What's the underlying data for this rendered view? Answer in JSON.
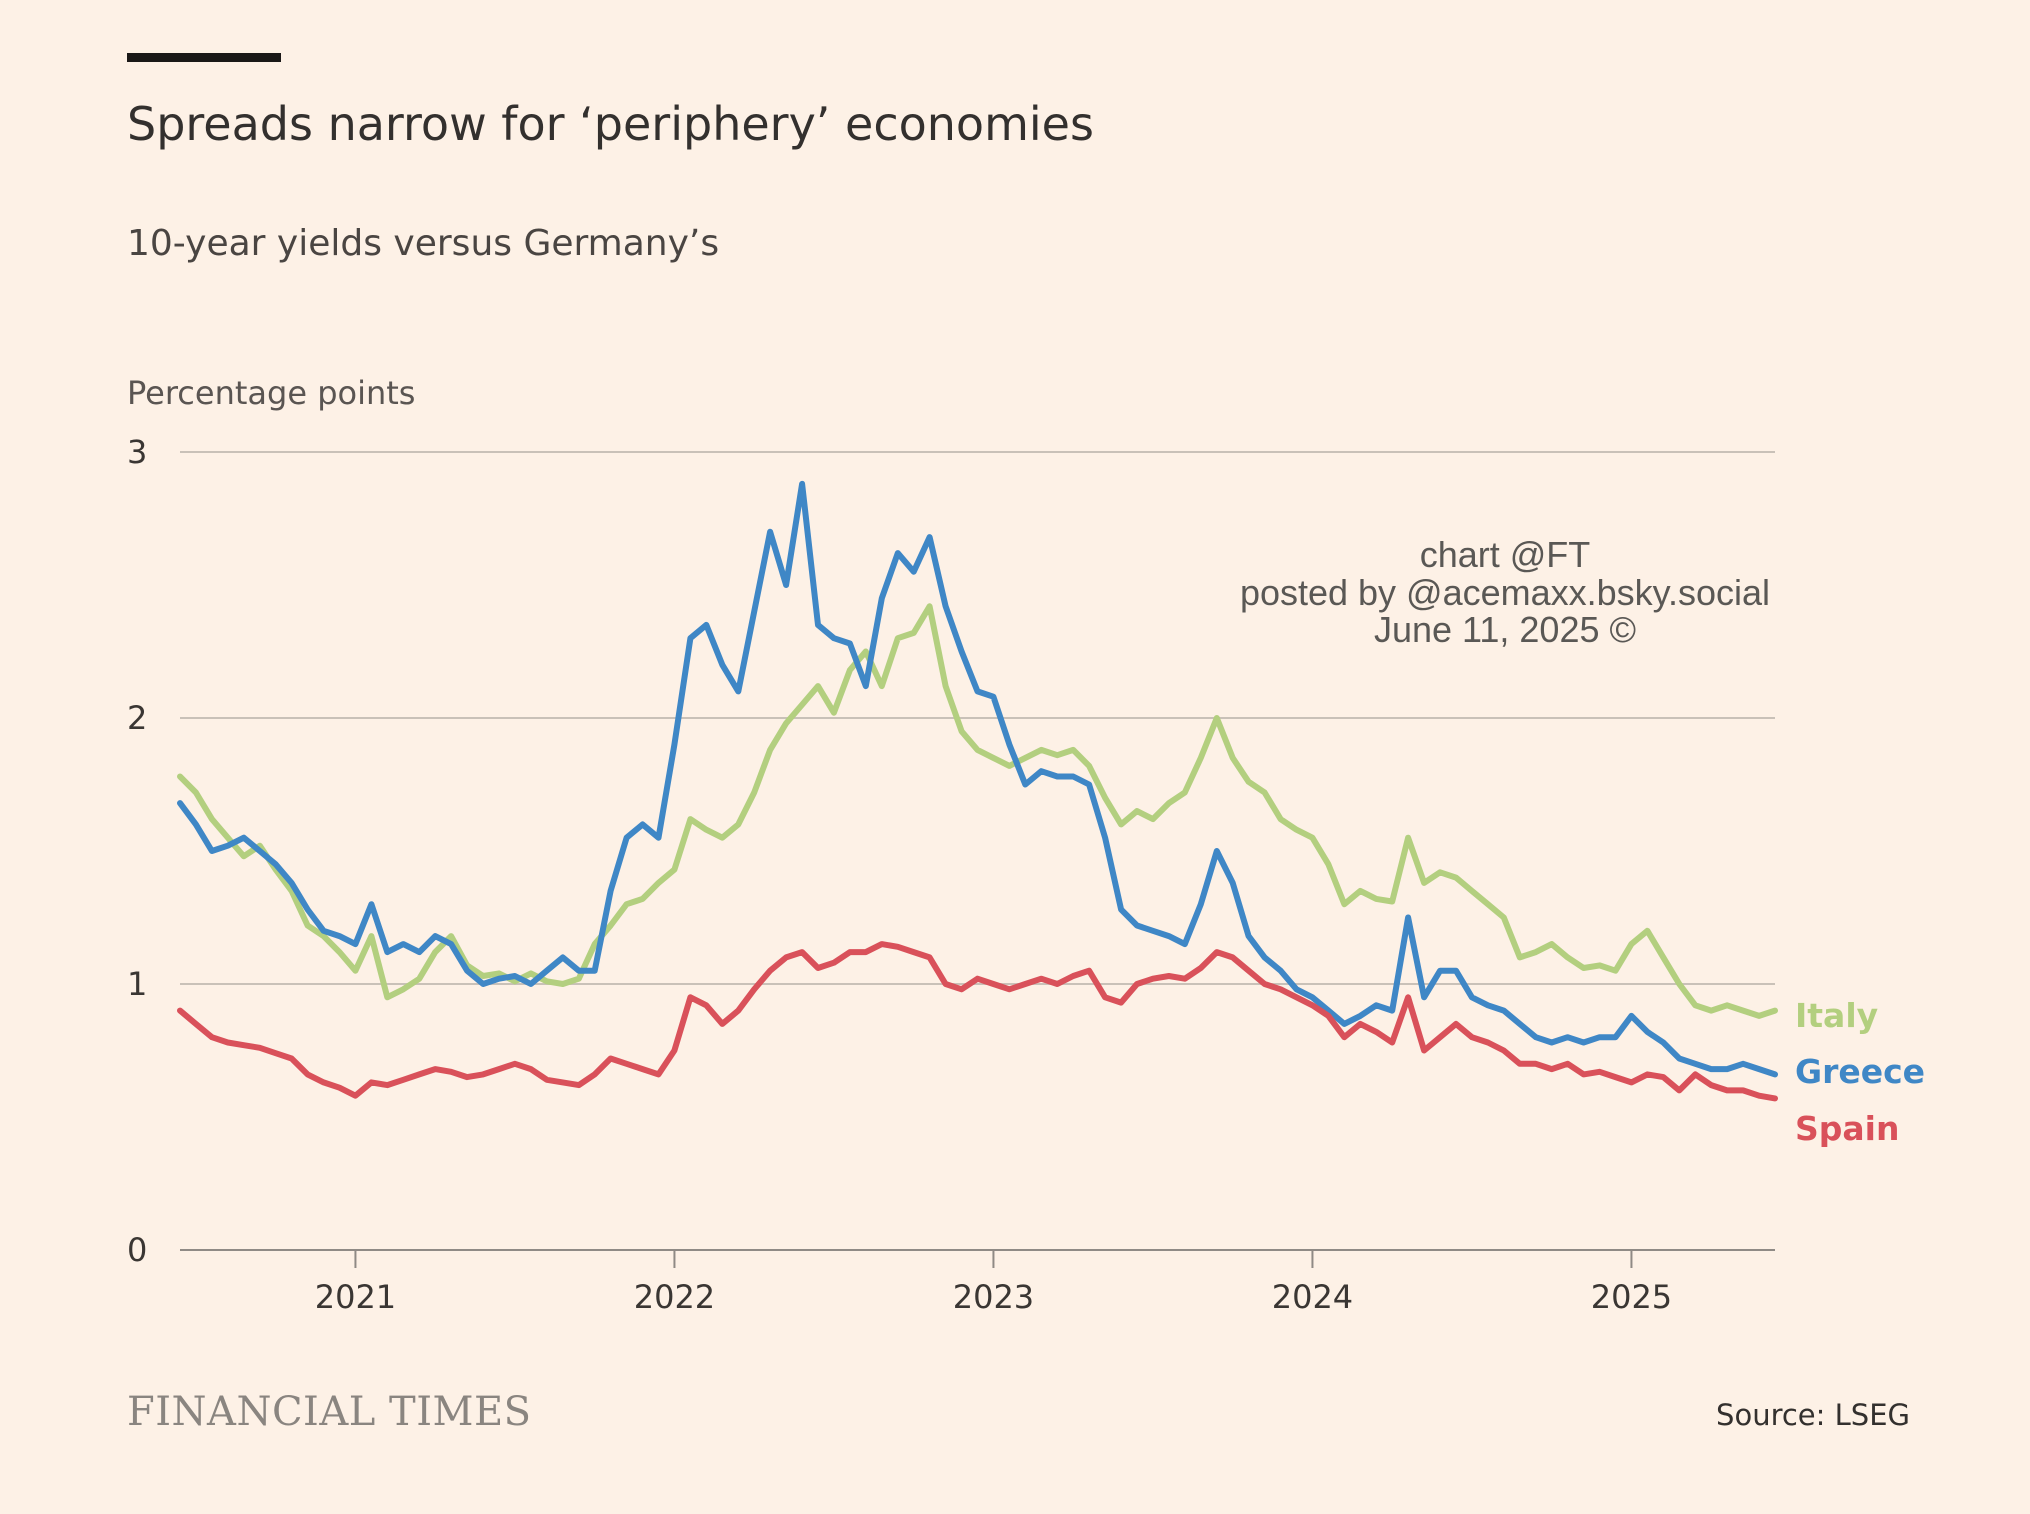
{
  "header": {
    "title": "Spreads narrow for ‘periphery’ economies",
    "subtitle": "10-year yields versus Germany’s",
    "unit_label": "Percentage points"
  },
  "watermark": {
    "line1": "chart @FT",
    "line2": "posted by @acemaxx.bsky.social",
    "line3": "June 11, 2025 ©"
  },
  "footer": {
    "brand": "FINANCIAL TIMES",
    "source": "Source: LSEG"
  },
  "colors": {
    "background": "#fdf1e6",
    "italy": "#b3cf7f",
    "greece": "#3f87c6",
    "spain": "#d9515a",
    "accent_bar": "#1a1817"
  },
  "chart_data": {
    "type": "line",
    "title": "Spreads narrow for ‘periphery’ economies",
    "subtitle": "10-year yields versus Germany’s",
    "ylabel": "Percentage points",
    "xlabel": "",
    "xlim": [
      2020.45,
      2025.45
    ],
    "ylim": [
      0,
      3
    ],
    "yticks": [
      0,
      1,
      2,
      3
    ],
    "xticks": [
      2021,
      2022,
      2023,
      2024,
      2025
    ],
    "grid": true,
    "legend": "right, end of lines",
    "series": [
      {
        "name": "Italy",
        "color": "#b3cf7f",
        "x": [
          2020.45,
          2020.5,
          2020.55,
          2020.6,
          2020.65,
          2020.7,
          2020.75,
          2020.8,
          2020.85,
          2020.9,
          2020.95,
          2021.0,
          2021.05,
          2021.1,
          2021.15,
          2021.2,
          2021.25,
          2021.3,
          2021.35,
          2021.4,
          2021.45,
          2021.5,
          2021.55,
          2021.6,
          2021.65,
          2021.7,
          2021.75,
          2021.8,
          2021.85,
          2021.9,
          2021.95,
          2022.0,
          2022.05,
          2022.1,
          2022.15,
          2022.2,
          2022.25,
          2022.3,
          2022.35,
          2022.4,
          2022.45,
          2022.5,
          2022.55,
          2022.6,
          2022.65,
          2022.7,
          2022.75,
          2022.8,
          2022.85,
          2022.9,
          2022.95,
          2023.0,
          2023.05,
          2023.1,
          2023.15,
          2023.2,
          2023.25,
          2023.3,
          2023.35,
          2023.4,
          2023.45,
          2023.5,
          2023.55,
          2023.6,
          2023.65,
          2023.7,
          2023.75,
          2023.8,
          2023.85,
          2023.9,
          2023.95,
          2024.0,
          2024.05,
          2024.1,
          2024.15,
          2024.2,
          2024.25,
          2024.3,
          2024.35,
          2024.4,
          2024.45,
          2024.5,
          2024.55,
          2024.6,
          2024.65,
          2024.7,
          2024.75,
          2024.8,
          2024.85,
          2024.9,
          2024.95,
          2025.0,
          2025.05,
          2025.1,
          2025.15,
          2025.2,
          2025.25,
          2025.3,
          2025.35,
          2025.4,
          2025.45
        ],
        "values": [
          1.78,
          1.72,
          1.62,
          1.55,
          1.48,
          1.52,
          1.43,
          1.35,
          1.22,
          1.18,
          1.12,
          1.05,
          1.18,
          0.95,
          0.98,
          1.02,
          1.12,
          1.18,
          1.07,
          1.03,
          1.04,
          1.01,
          1.04,
          1.01,
          1.0,
          1.02,
          1.15,
          1.22,
          1.3,
          1.32,
          1.38,
          1.43,
          1.62,
          1.58,
          1.55,
          1.6,
          1.72,
          1.88,
          1.98,
          2.05,
          2.12,
          2.02,
          2.18,
          2.25,
          2.12,
          2.3,
          2.32,
          2.42,
          2.12,
          1.95,
          1.88,
          1.85,
          1.82,
          1.85,
          1.88,
          1.86,
          1.88,
          1.82,
          1.7,
          1.6,
          1.65,
          1.62,
          1.68,
          1.72,
          1.85,
          2.0,
          1.85,
          1.76,
          1.72,
          1.62,
          1.58,
          1.55,
          1.45,
          1.3,
          1.35,
          1.32,
          1.31,
          1.55,
          1.38,
          1.42,
          1.4,
          1.35,
          1.3,
          1.25,
          1.1,
          1.12,
          1.15,
          1.1,
          1.06,
          1.07,
          1.05,
          1.15,
          1.2,
          1.1,
          1.0,
          0.92,
          0.9,
          0.92,
          0.9,
          0.88,
          0.9
        ]
      },
      {
        "name": "Greece",
        "color": "#3f87c6",
        "x": [
          2020.45,
          2020.5,
          2020.55,
          2020.6,
          2020.65,
          2020.7,
          2020.75,
          2020.8,
          2020.85,
          2020.9,
          2020.95,
          2021.0,
          2021.05,
          2021.1,
          2021.15,
          2021.2,
          2021.25,
          2021.3,
          2021.35,
          2021.4,
          2021.45,
          2021.5,
          2021.55,
          2021.6,
          2021.65,
          2021.7,
          2021.75,
          2021.8,
          2021.85,
          2021.9,
          2021.95,
          2022.0,
          2022.05,
          2022.1,
          2022.15,
          2022.2,
          2022.25,
          2022.3,
          2022.35,
          2022.4,
          2022.45,
          2022.5,
          2022.55,
          2022.6,
          2022.65,
          2022.7,
          2022.75,
          2022.8,
          2022.85,
          2022.9,
          2022.95,
          2023.0,
          2023.05,
          2023.1,
          2023.15,
          2023.2,
          2023.25,
          2023.3,
          2023.35,
          2023.4,
          2023.45,
          2023.5,
          2023.55,
          2023.6,
          2023.65,
          2023.7,
          2023.75,
          2023.8,
          2023.85,
          2023.9,
          2023.95,
          2024.0,
          2024.05,
          2024.1,
          2024.15,
          2024.2,
          2024.25,
          2024.3,
          2024.35,
          2024.4,
          2024.45,
          2024.5,
          2024.55,
          2024.6,
          2024.65,
          2024.7,
          2024.75,
          2024.8,
          2024.85,
          2024.9,
          2024.95,
          2025.0,
          2025.05,
          2025.1,
          2025.15,
          2025.2,
          2025.25,
          2025.3,
          2025.35,
          2025.4,
          2025.45
        ],
        "values": [
          1.68,
          1.6,
          1.5,
          1.52,
          1.55,
          1.5,
          1.45,
          1.38,
          1.28,
          1.2,
          1.18,
          1.15,
          1.3,
          1.12,
          1.15,
          1.12,
          1.18,
          1.15,
          1.05,
          1.0,
          1.02,
          1.03,
          1.0,
          1.05,
          1.1,
          1.05,
          1.05,
          1.35,
          1.55,
          1.6,
          1.55,
          1.9,
          2.3,
          2.35,
          2.2,
          2.1,
          2.4,
          2.7,
          2.5,
          2.88,
          2.35,
          2.3,
          2.28,
          2.12,
          2.45,
          2.62,
          2.55,
          2.68,
          2.42,
          2.25,
          2.1,
          2.08,
          1.9,
          1.75,
          1.8,
          1.78,
          1.78,
          1.75,
          1.55,
          1.28,
          1.22,
          1.2,
          1.18,
          1.15,
          1.3,
          1.5,
          1.38,
          1.18,
          1.1,
          1.05,
          0.98,
          0.95,
          0.9,
          0.85,
          0.88,
          0.92,
          0.9,
          1.25,
          0.95,
          1.05,
          1.05,
          0.95,
          0.92,
          0.9,
          0.85,
          0.8,
          0.78,
          0.8,
          0.78,
          0.8,
          0.8,
          0.88,
          0.82,
          0.78,
          0.72,
          0.7,
          0.68,
          0.68,
          0.7,
          0.68,
          0.66
        ]
      },
      {
        "name": "Spain",
        "color": "#d9515a",
        "x": [
          2020.45,
          2020.5,
          2020.55,
          2020.6,
          2020.65,
          2020.7,
          2020.75,
          2020.8,
          2020.85,
          2020.9,
          2020.95,
          2021.0,
          2021.05,
          2021.1,
          2021.15,
          2021.2,
          2021.25,
          2021.3,
          2021.35,
          2021.4,
          2021.45,
          2021.5,
          2021.55,
          2021.6,
          2021.65,
          2021.7,
          2021.75,
          2021.8,
          2021.85,
          2021.9,
          2021.95,
          2022.0,
          2022.05,
          2022.1,
          2022.15,
          2022.2,
          2022.25,
          2022.3,
          2022.35,
          2022.4,
          2022.45,
          2022.5,
          2022.55,
          2022.6,
          2022.65,
          2022.7,
          2022.75,
          2022.8,
          2022.85,
          2022.9,
          2022.95,
          2023.0,
          2023.05,
          2023.1,
          2023.15,
          2023.2,
          2023.25,
          2023.3,
          2023.35,
          2023.4,
          2023.45,
          2023.5,
          2023.55,
          2023.6,
          2023.65,
          2023.7,
          2023.75,
          2023.8,
          2023.85,
          2023.9,
          2023.95,
          2024.0,
          2024.05,
          2024.1,
          2024.15,
          2024.2,
          2024.25,
          2024.3,
          2024.35,
          2024.4,
          2024.45,
          2024.5,
          2024.55,
          2024.6,
          2024.65,
          2024.7,
          2024.75,
          2024.8,
          2024.85,
          2024.9,
          2024.95,
          2025.0,
          2025.05,
          2025.1,
          2025.15,
          2025.2,
          2025.25,
          2025.3,
          2025.35,
          2025.4,
          2025.45
        ],
        "values": [
          0.9,
          0.85,
          0.8,
          0.78,
          0.77,
          0.76,
          0.74,
          0.72,
          0.66,
          0.63,
          0.61,
          0.58,
          0.63,
          0.62,
          0.64,
          0.66,
          0.68,
          0.67,
          0.65,
          0.66,
          0.68,
          0.7,
          0.68,
          0.64,
          0.63,
          0.62,
          0.66,
          0.72,
          0.7,
          0.68,
          0.66,
          0.75,
          0.95,
          0.92,
          0.85,
          0.9,
          0.98,
          1.05,
          1.1,
          1.12,
          1.06,
          1.08,
          1.12,
          1.12,
          1.15,
          1.14,
          1.12,
          1.1,
          1.0,
          0.98,
          1.02,
          1.0,
          0.98,
          1.0,
          1.02,
          1.0,
          1.03,
          1.05,
          0.95,
          0.93,
          1.0,
          1.02,
          1.03,
          1.02,
          1.06,
          1.12,
          1.1,
          1.05,
          1.0,
          0.98,
          0.95,
          0.92,
          0.88,
          0.8,
          0.85,
          0.82,
          0.78,
          0.95,
          0.75,
          0.8,
          0.85,
          0.8,
          0.78,
          0.75,
          0.7,
          0.7,
          0.68,
          0.7,
          0.66,
          0.67,
          0.65,
          0.63,
          0.66,
          0.65,
          0.6,
          0.66,
          0.62,
          0.6,
          0.6,
          0.58,
          0.57
        ]
      }
    ]
  }
}
